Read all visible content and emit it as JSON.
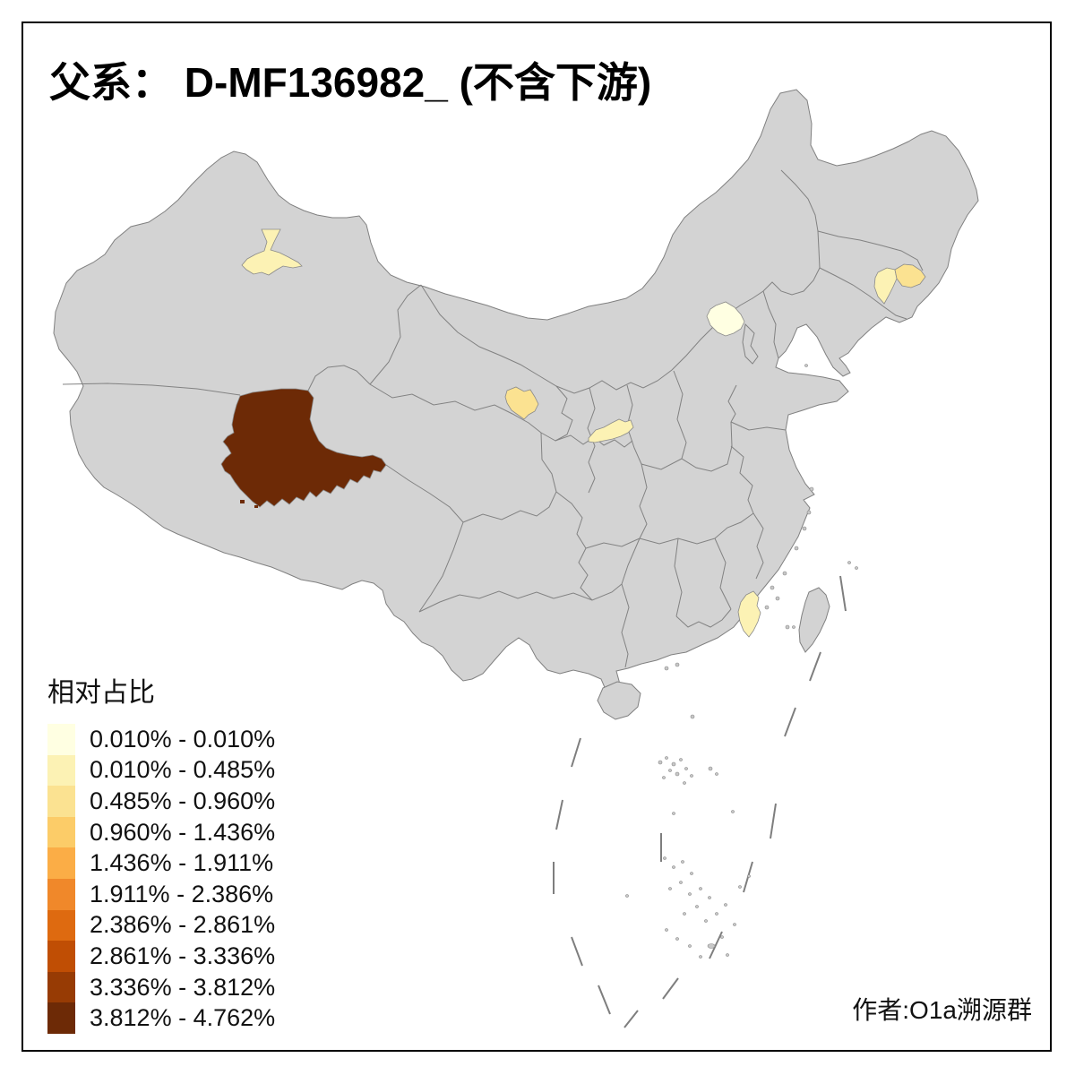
{
  "title": "父系： D-MF136982_ (不含下游)",
  "author": "作者:O1a溯源群",
  "legend": {
    "title": "相对占比",
    "classes": [
      {
        "label": "0.010% - 0.010%",
        "color": "#FFFFE2"
      },
      {
        "label": "0.010% - 0.485%",
        "color": "#FCF2B4"
      },
      {
        "label": "0.485% - 0.960%",
        "color": "#FBE291"
      },
      {
        "label": "0.960% - 1.436%",
        "color": "#FCCC68"
      },
      {
        "label": "1.436% - 1.911%",
        "color": "#FBAD46"
      },
      {
        "label": "1.911% - 2.386%",
        "color": "#F0882A"
      },
      {
        "label": "2.386% - 2.861%",
        "color": "#DE6A10"
      },
      {
        "label": "2.861% - 3.336%",
        "color": "#C04E04"
      },
      {
        "label": "3.336% - 3.812%",
        "color": "#973B04"
      },
      {
        "label": "3.812% - 4.762%",
        "color": "#6D2A06"
      }
    ]
  },
  "map": {
    "land_color": "#D3D3D3",
    "border_color": "#808080",
    "background": "#FFFFFF",
    "regions": [
      {
        "name": "north-xinjiang-highlight",
        "legend_class": "0.010% - 0.485%",
        "color": "#FCF2B4"
      },
      {
        "name": "qinghai-tibet-large-highlight",
        "legend_class": "3.812% - 4.762%",
        "color": "#6D2A06"
      },
      {
        "name": "central-gansu-highlight",
        "legend_class": "0.485% - 0.960%",
        "color": "#FBE291"
      },
      {
        "name": "central-shaanxi-highlight",
        "legend_class": "0.010% - 0.485%",
        "color": "#FCF2B4"
      },
      {
        "name": "beijing-area-highlight",
        "legend_class": "0.010% - 0.010%",
        "color": "#FFFFE2"
      },
      {
        "name": "southeast-jilin-west-highlight",
        "legend_class": "0.010% - 0.485%",
        "color": "#FCF2B4"
      },
      {
        "name": "southeast-jilin-east-highlight",
        "legend_class": "0.485% - 0.960%",
        "color": "#FBE291"
      },
      {
        "name": "southern-fujian-highlight",
        "legend_class": "0.010% - 0.485%",
        "color": "#FCF2B4"
      }
    ]
  }
}
